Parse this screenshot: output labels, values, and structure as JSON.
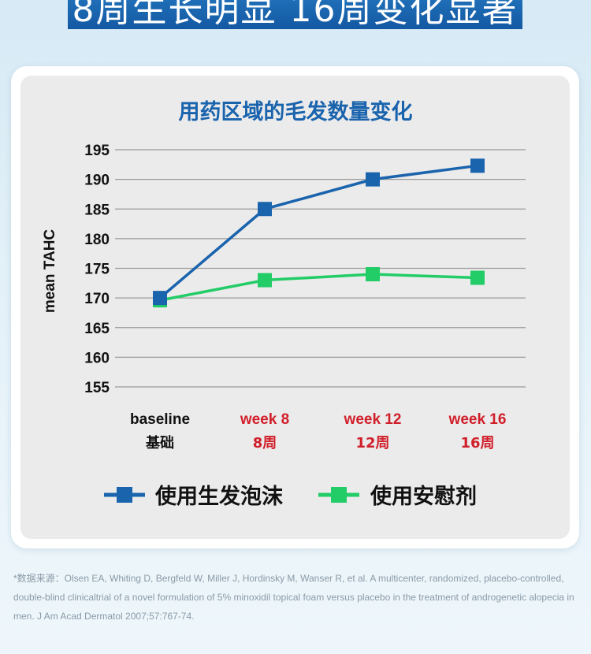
{
  "banner": {
    "text": "8周生长明显 16周变化显著"
  },
  "colors": {
    "banner_bg": "#1a63ad",
    "title": "#1a63ad",
    "foam_series": "#1a63ad",
    "placebo_series": "#22cc66",
    "week_labels": "#d11f2a",
    "grid": "#9a9a9a"
  },
  "chart_data": {
    "type": "line",
    "title": "用药区域的毛发数量变化",
    "ylabel": "mean TAHC",
    "xlabel": "",
    "ylim": [
      155,
      195
    ],
    "yticks": [
      155,
      160,
      165,
      170,
      175,
      180,
      185,
      190,
      195
    ],
    "categories": [
      "baseline",
      "week 8",
      "week 12",
      "week 16"
    ],
    "categories_cn": [
      "基础",
      "8周",
      "12周",
      "16周"
    ],
    "grid": true,
    "legend_position": "bottom",
    "series": [
      {
        "name": "使用生发泡沫",
        "color": "#1a63ad",
        "marker": "square",
        "values": [
          170.0,
          185.0,
          190.0,
          192.3
        ]
      },
      {
        "name": "使用安慰剂",
        "color": "#22cc66",
        "marker": "square",
        "values": [
          169.6,
          173.0,
          174.0,
          173.4
        ]
      }
    ]
  },
  "footnote": "*数据来源：Olsen EA, Whiting D, Bergfeld W, Miller J, Hordinsky M, Wanser R, et al.  A multicenter, randomized, placebo-controlled, double-blind clinicaltrial of a  novel formulation of 5% minoxidil topical foam versus placebo in the treatment  of androgenetic alopecia in men. J Am Acad Dermatol 2007;57:767-74."
}
